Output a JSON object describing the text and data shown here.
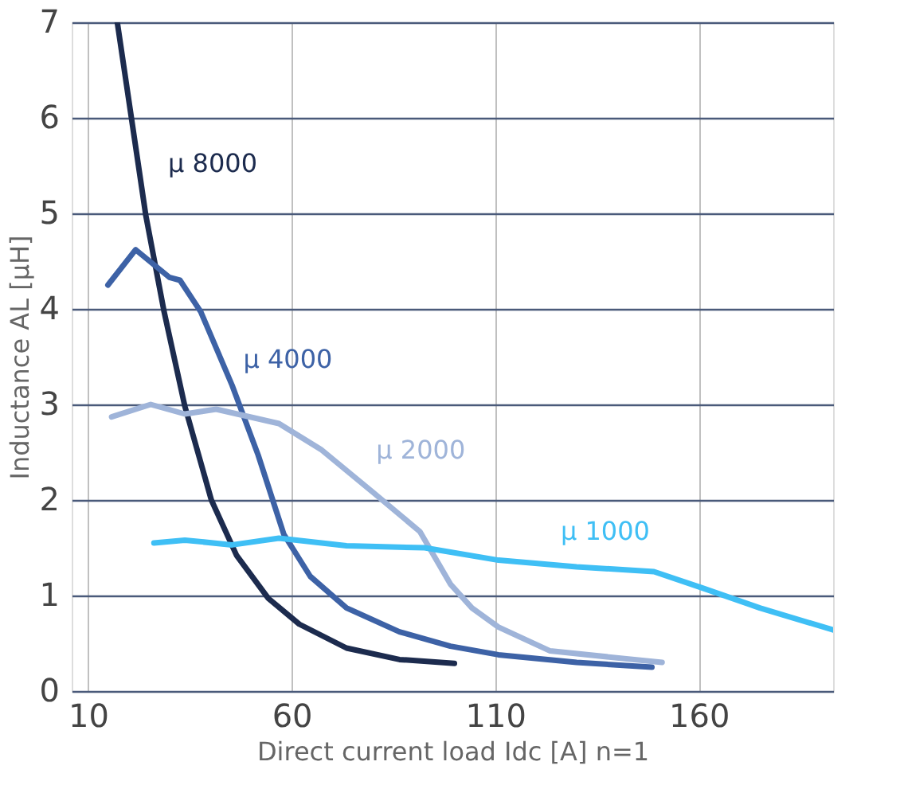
{
  "chart_data": {
    "type": "line",
    "xlabel": "Direct current load Idc [A] n=1",
    "ylabel": "Inductance AL  [µH]",
    "xlim": [
      6,
      193
    ],
    "ylim": [
      0,
      7
    ],
    "xticks": [
      10,
      60,
      110,
      160
    ],
    "yticks": [
      0,
      1,
      2,
      3,
      4,
      5,
      6,
      7
    ],
    "grid": true,
    "marker": "none",
    "line_style": "solid",
    "series": [
      {
        "name": "μ 8000",
        "color": "#1c2b4e",
        "x": [
          17.2,
          24.2,
          28.7,
          33.8,
          40.3,
          46.5,
          54.3,
          61.9,
          73.5,
          86.5,
          100
        ],
        "values": [
          7.0,
          4.98,
          3.97,
          2.98,
          2.0,
          1.42,
          0.97,
          0.7,
          0.45,
          0.33,
          0.29
        ]
      },
      {
        "name": "μ 4000",
        "color": "#3d62a6",
        "x": [
          14.9,
          21.7,
          30,
          32.6,
          37.7,
          45.4,
          51.8,
          58.1,
          64.6,
          73.5,
          86.5,
          99,
          110.8,
          130,
          148.5
        ],
        "values": [
          4.25,
          4.62,
          4.33,
          4.3,
          3.97,
          3.2,
          2.47,
          1.64,
          1.2,
          0.87,
          0.62,
          0.47,
          0.38,
          0.3,
          0.25
        ]
      },
      {
        "name": "μ 2000",
        "color": "#9fb4d9",
        "x": [
          15.8,
          25.4,
          33.8,
          41.5,
          56.9,
          67.2,
          80,
          91.5,
          99,
          104.3,
          110.8,
          123.5,
          151
        ],
        "values": [
          2.87,
          3.0,
          2.9,
          2.95,
          2.8,
          2.53,
          2.08,
          1.67,
          1.12,
          0.87,
          0.67,
          0.42,
          0.3
        ]
      },
      {
        "name": "μ 1000",
        "color": "#3fbff5",
        "x": [
          26.2,
          33.8,
          45.4,
          56.9,
          73.5,
          92.7,
          110.8,
          130,
          149,
          160.8,
          175,
          193
        ],
        "values": [
          1.55,
          1.58,
          1.53,
          1.6,
          1.52,
          1.5,
          1.37,
          1.3,
          1.25,
          1.08,
          0.87,
          0.64
        ]
      }
    ]
  }
}
